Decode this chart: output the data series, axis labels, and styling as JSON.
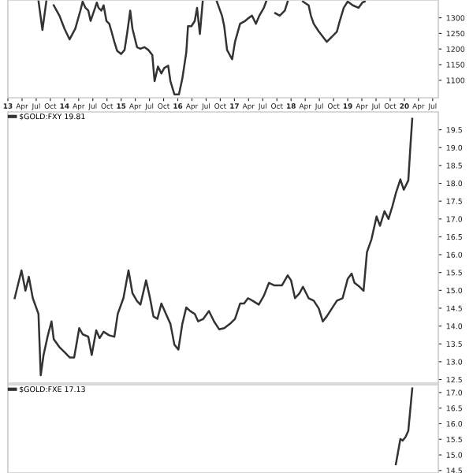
{
  "chart_data": [
    {
      "type": "line",
      "x": [
        2013.54,
        2013.61,
        2013.68,
        2013.77,
        2013.81,
        2013.91,
        2014.0,
        2014.09,
        2014.19,
        2014.28,
        2014.32,
        2014.37,
        2014.42,
        2014.46,
        2014.54,
        2014.57,
        2014.6,
        2014.65,
        2014.69,
        2014.74,
        2014.79,
        2014.83,
        2014.88,
        2014.93,
        2015.0,
        2015.06,
        2015.11,
        2015.16,
        2015.2,
        2015.28,
        2015.34,
        2015.41,
        2015.48,
        2015.55,
        2015.59,
        2015.65,
        2015.71,
        2015.76,
        2015.83,
        2015.87,
        2015.94,
        2016.02,
        2016.08,
        2016.15,
        2016.18,
        2016.24,
        2016.3,
        2016.34,
        2016.39,
        2016.44,
        2016.55,
        2016.69,
        2016.78,
        2016.82,
        2016.87,
        2016.96,
        2017.01,
        2017.1,
        2017.19,
        2017.24,
        2017.31,
        2017.38,
        2017.44,
        2017.52,
        2017.56,
        2017.66,
        2017.72,
        2017.8,
        2017.89,
        2017.94,
        2018.07,
        2018.21,
        2018.31,
        2018.35,
        2018.4,
        2018.49,
        2018.63,
        2018.72,
        2018.81,
        2018.86,
        2018.93,
        2019.0,
        2019.09,
        2019.19,
        2019.26,
        2019.3
      ],
      "series": [
        {
          "color": "#333333",
          "values": [
            1355,
            1261,
            1355,
            null,
            1340,
            1307,
            1265,
            1231,
            1265,
            1323,
            1352,
            1332,
            1323,
            1290,
            1332,
            1349,
            1332,
            1323,
            1340,
            1290,
            1281,
            1256,
            1223,
            1194,
            1184,
            1197,
            1256,
            1323,
            1265,
            1206,
            1201,
            1206,
            1197,
            1181,
            1097,
            1144,
            1122,
            1139,
            1147,
            1097,
            1055,
            1055,
            1105,
            1189,
            1273,
            1273,
            1290,
            1332,
            1248,
            1352,
            null,
            1352,
            1307,
            1273,
            1197,
            1167,
            1223,
            1281,
            1290,
            1298,
            1307,
            1281,
            1307,
            1332,
            1352,
            null,
            1315,
            1307,
            1323,
            1352,
            null,
            1352,
            1340,
            1307,
            1281,
            1256,
            1223,
            1239,
            1256,
            1290,
            1332,
            1352,
            1340,
            1332,
            1349,
            1352
          ]
        }
      ],
      "xlim": [
        2013.0,
        2020.6
      ],
      "ylim": [
        1044,
        1357
      ],
      "yticks": [
        1100,
        1150,
        1200,
        1250,
        1300
      ],
      "xticks": [
        {
          "value": 2013,
          "label": "13"
        },
        {
          "value": 2013.25,
          "label": "Apr"
        },
        {
          "value": 2013.5,
          "label": "Jul"
        },
        {
          "value": 2013.75,
          "label": "Oct"
        },
        {
          "value": 2014,
          "label": "14"
        },
        {
          "value": 2014.25,
          "label": "Apr"
        },
        {
          "value": 2014.5,
          "label": "Jul"
        },
        {
          "value": 2014.75,
          "label": "Oct"
        },
        {
          "value": 2015,
          "label": "15"
        },
        {
          "value": 2015.25,
          "label": "Apr"
        },
        {
          "value": 2015.5,
          "label": "Jul"
        },
        {
          "value": 2015.75,
          "label": "Oct"
        },
        {
          "value": 2016,
          "label": "16"
        },
        {
          "value": 2016.25,
          "label": "Apr"
        },
        {
          "value": 2016.5,
          "label": "Jul"
        },
        {
          "value": 2016.75,
          "label": "Oct"
        },
        {
          "value": 2017,
          "label": "17"
        },
        {
          "value": 2017.25,
          "label": "Apr"
        },
        {
          "value": 2017.5,
          "label": "Jul"
        },
        {
          "value": 2017.75,
          "label": "Oct"
        },
        {
          "value": 2018,
          "label": "18"
        },
        {
          "value": 2018.25,
          "label": "Apr"
        },
        {
          "value": 2018.5,
          "label": "Jul"
        },
        {
          "value": 2018.75,
          "label": "Oct"
        },
        {
          "value": 2019,
          "label": "19"
        },
        {
          "value": 2019.25,
          "label": "Apr"
        },
        {
          "value": 2019.5,
          "label": "Jul"
        },
        {
          "value": 2019.75,
          "label": "Oct"
        },
        {
          "value": 2020,
          "label": "20"
        },
        {
          "value": 2020.25,
          "label": "Apr"
        },
        {
          "value": 2020.5,
          "label": "Jul"
        }
      ],
      "grid": false,
      "legend": false
    },
    {
      "type": "line",
      "x": [
        2013.12,
        2013.24,
        2013.31,
        2013.37,
        2013.44,
        2013.54,
        2013.58,
        2013.63,
        2013.7,
        2013.77,
        2013.81,
        2013.91,
        2014.0,
        2014.09,
        2014.17,
        2014.26,
        2014.32,
        2014.42,
        2014.48,
        2014.56,
        2014.62,
        2014.69,
        2014.79,
        2014.88,
        2014.94,
        2015.04,
        2015.13,
        2015.2,
        2015.28,
        2015.34,
        2015.44,
        2015.51,
        2015.57,
        2015.64,
        2015.71,
        2015.81,
        2015.87,
        2015.94,
        2016.01,
        2016.08,
        2016.15,
        2016.22,
        2016.3,
        2016.36,
        2016.45,
        2016.55,
        2016.64,
        2016.73,
        2016.82,
        2016.92,
        2017.01,
        2017.1,
        2017.17,
        2017.24,
        2017.33,
        2017.43,
        2017.52,
        2017.61,
        2017.7,
        2017.84,
        2017.94,
        2018.0,
        2018.07,
        2018.15,
        2018.21,
        2018.31,
        2018.4,
        2018.49,
        2018.56,
        2018.63,
        2018.72,
        2018.81,
        2018.91,
        2019.0,
        2019.07,
        2019.12,
        2019.21,
        2019.28,
        2019.34,
        2019.42,
        2019.51,
        2019.57,
        2019.65,
        2019.72,
        2019.79,
        2019.85,
        2019.93,
        2019.99,
        2020.07,
        2020.11,
        2020.14
      ],
      "series": [
        {
          "name": "$GOLD:FXY 19.81",
          "color": "#333333",
          "values": [
            14.78,
            15.56,
            14.99,
            15.38,
            14.78,
            14.34,
            12.62,
            13.19,
            13.7,
            14.13,
            13.63,
            13.41,
            13.27,
            13.12,
            13.12,
            13.94,
            13.77,
            13.7,
            13.19,
            13.88,
            13.66,
            13.84,
            13.74,
            13.7,
            14.34,
            14.78,
            15.56,
            14.92,
            14.7,
            14.6,
            15.28,
            14.78,
            14.27,
            14.2,
            14.63,
            14.27,
            14.06,
            13.48,
            13.34,
            14.06,
            14.52,
            14.42,
            14.34,
            14.13,
            14.2,
            14.42,
            14.13,
            13.91,
            13.94,
            14.06,
            14.2,
            14.63,
            14.63,
            14.78,
            14.7,
            14.6,
            14.85,
            15.21,
            15.14,
            15.14,
            15.42,
            15.28,
            14.78,
            14.92,
            15.1,
            14.78,
            14.71,
            14.49,
            14.13,
            14.27,
            14.49,
            14.71,
            14.78,
            15.32,
            15.47,
            15.21,
            15.1,
            14.99,
            16.07,
            16.43,
            17.07,
            16.81,
            17.22,
            17.0,
            17.36,
            17.72,
            18.11,
            17.82,
            18.08,
            19.1,
            19.81
          ]
        }
      ],
      "xlim": [
        2013.0,
        2020.6
      ],
      "ylim": [
        12.4,
        20.0
      ],
      "yticks": [
        12.5,
        {
          "value": 13,
          "label": "13.0"
        },
        13.5,
        {
          "value": 14,
          "label": "14.0"
        },
        14.5,
        {
          "value": 15,
          "label": "15.0"
        },
        15.5,
        {
          "value": 16,
          "label": "16.0"
        },
        16.5,
        {
          "value": 17,
          "label": "17.0"
        },
        17.5,
        {
          "value": 18,
          "label": "18.0"
        },
        18.5,
        {
          "value": 19,
          "label": "19.0"
        },
        19.5
      ],
      "tick_labels": "y",
      "grid": false,
      "legend": "top left"
    },
    {
      "type": "line",
      "x": [
        2019.85,
        2019.88,
        2019.93,
        2019.97,
        2020.02,
        2020.07,
        2020.14
      ],
      "series": [
        {
          "name": "$GOLD:FXE 17.13",
          "color": "#333333",
          "values": [
            14.7,
            15.0,
            15.51,
            15.46,
            15.57,
            15.77,
            17.13
          ]
        }
      ],
      "xlim": [
        2013.0,
        2020.6
      ],
      "ylim": [
        14.42,
        17.25
      ],
      "yticks": [
        14.5,
        {
          "value": 15,
          "label": "15.0"
        },
        15.5,
        {
          "value": 16,
          "label": "16.0"
        },
        16.5,
        {
          "value": 17,
          "label": "17.0"
        }
      ],
      "tick_labels": "y",
      "grid": false,
      "legend": "top left"
    }
  ]
}
